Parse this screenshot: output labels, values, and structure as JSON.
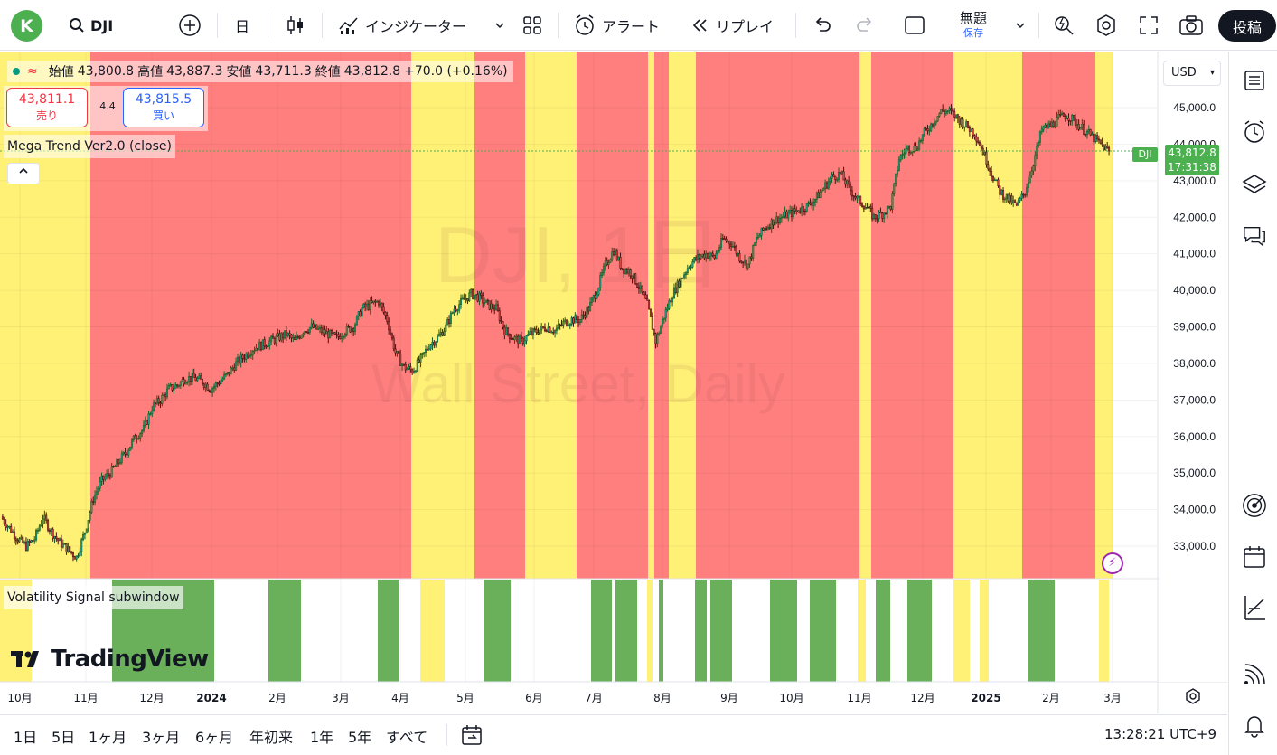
{
  "topbar": {
    "avatar_letter": "K",
    "symbol": "DJI",
    "interval": "日",
    "indicators_label": "インジケーター",
    "alert_label": "アラート",
    "replay_label": "リプレイ",
    "layout_name": "無題",
    "save_label": "保存",
    "post_label": "投稿"
  },
  "legend": {
    "open_label": "始値",
    "open": "43,800.8",
    "high_label": "高値",
    "high": "43,887.3",
    "low_label": "安値",
    "low": "43,711.3",
    "close_label": "終値",
    "close": "43,812.8",
    "change": "+70.0 (+0.16%)",
    "wave": "≈"
  },
  "trade": {
    "sell_price": "43,811.1",
    "sell_label": "売り",
    "spread": "4.4",
    "buy_price": "43,815.5",
    "buy_label": "買い"
  },
  "indicator_name": "Mega Trend Ver2.0 (close)",
  "subwindow_name": "Volatility Signal subwindow",
  "watermark": {
    "line1": "DJI, 1日",
    "line2": "Wall Street, Daily"
  },
  "logo_text": "TradingView",
  "price_axis": {
    "currency": "USD",
    "ticks": [
      "45,000.0",
      "44,000.0",
      "43,000.0",
      "42,000.0",
      "41,000.0",
      "40,000.0",
      "39,000.0",
      "38,000.0",
      "37,000.0",
      "36,000.0",
      "35,000.0",
      "34,000.0",
      "33,000.0"
    ],
    "current_price": "43,812.8",
    "countdown": "17:31:38",
    "symbol_tag": "DJI"
  },
  "time_axis": {
    "labels": [
      "10月",
      "11月",
      "12月",
      "2024",
      "2月",
      "3月",
      "4月",
      "5月",
      "6月",
      "7月",
      "8月",
      "9月",
      "10月",
      "11月",
      "12月",
      "2025",
      "2月",
      "3月"
    ]
  },
  "bottombar": {
    "ranges": [
      "1日",
      "5日",
      "1ヶ月",
      "3ヶ月",
      "6ヶ月",
      "年初来",
      "1年",
      "5年",
      "すべて"
    ],
    "clock": "13:28:21 UTC+9"
  },
  "colors": {
    "bull": "#26a69a",
    "bear": "#ef5350",
    "candle_body_dark": "#1b3a2c",
    "zone_red": "#ff7f7f",
    "zone_yellow": "#fff176",
    "signal_green": "#6aaf5a",
    "accent": "#2962ff",
    "price_tag": "#4caf50"
  },
  "chart_data": {
    "type": "candlestick",
    "y_range": [
      32000,
      46200
    ],
    "series": [
      {
        "values": [
          33800,
          33500,
          33200,
          33000,
          33200,
          33800,
          33400,
          33100,
          32900,
          32700,
          33400,
          34300,
          34800,
          35000,
          35300,
          35600,
          36000,
          36200,
          36800,
          37000,
          37300,
          37400,
          37600,
          37600,
          37500,
          37300,
          37500,
          37700,
          38000,
          38200,
          38400,
          38500,
          38600,
          38700,
          38800,
          38600,
          38900,
          39000,
          38900,
          38800,
          38700,
          38900,
          39000,
          39500,
          39600,
          39700,
          39200,
          38300,
          37900,
          37800,
          38100,
          38500,
          38700,
          39000,
          39500,
          39700,
          39900,
          39800,
          39600,
          39500,
          38900,
          38700,
          38600,
          38800,
          38900,
          39000,
          38900,
          39100,
          39200,
          39200,
          39500,
          40000,
          40700,
          41100,
          40600,
          40500,
          40100,
          39600,
          38600,
          39300,
          39900,
          40300,
          40700,
          40900,
          41000,
          40900,
          41400,
          41300,
          40900,
          40700,
          41400,
          41700,
          41900,
          42000,
          42100,
          42200,
          42300,
          42500,
          42800,
          43100,
          43200,
          42800,
          42500,
          42300,
          42000,
          42100,
          42300,
          43600,
          43900,
          43900,
          44300,
          44600,
          44900,
          44900,
          44700,
          44500,
          44300,
          43800,
          43200,
          42700,
          42500,
          42300,
          42700,
          43500,
          44400,
          44500,
          44700,
          44800,
          44600,
          44400,
          44200,
          44000,
          43800
        ]
      }
    ],
    "zones": [
      {
        "from": 0,
        "to": 100,
        "color": "yellow"
      },
      {
        "from": 100,
        "to": 455,
        "color": "red"
      },
      {
        "from": 455,
        "to": 525,
        "color": "yellow"
      },
      {
        "from": 525,
        "to": 581,
        "color": "red"
      },
      {
        "from": 581,
        "to": 638,
        "color": "yellow"
      },
      {
        "from": 638,
        "to": 717,
        "color": "red"
      },
      {
        "from": 717,
        "to": 724,
        "color": "yellow"
      },
      {
        "from": 724,
        "to": 740,
        "color": "red"
      },
      {
        "from": 740,
        "to": 770,
        "color": "yellow"
      },
      {
        "from": 770,
        "to": 951,
        "color": "red"
      },
      {
        "from": 951,
        "to": 964,
        "color": "yellow"
      },
      {
        "from": 964,
        "to": 1055,
        "color": "red"
      },
      {
        "from": 1055,
        "to": 1131,
        "color": "yellow"
      },
      {
        "from": 1131,
        "to": 1212,
        "color": "red"
      },
      {
        "from": 1212,
        "to": 1232,
        "color": "yellow"
      }
    ],
    "signals": [
      {
        "from": 0,
        "to": 35,
        "color": "yellow"
      },
      {
        "from": 124,
        "to": 237,
        "color": "green"
      },
      {
        "from": 297,
        "to": 333,
        "color": "green"
      },
      {
        "from": 418,
        "to": 442,
        "color": "green"
      },
      {
        "from": 465,
        "to": 492,
        "color": "yellow"
      },
      {
        "from": 535,
        "to": 565,
        "color": "green"
      },
      {
        "from": 654,
        "to": 677,
        "color": "green"
      },
      {
        "from": 681,
        "to": 705,
        "color": "green"
      },
      {
        "from": 716,
        "to": 722,
        "color": "yellow"
      },
      {
        "from": 729,
        "to": 734,
        "color": "green"
      },
      {
        "from": 769,
        "to": 782,
        "color": "green"
      },
      {
        "from": 786,
        "to": 810,
        "color": "green"
      },
      {
        "from": 852,
        "to": 882,
        "color": "green"
      },
      {
        "from": 896,
        "to": 925,
        "color": "green"
      },
      {
        "from": 949,
        "to": 958,
        "color": "yellow"
      },
      {
        "from": 969,
        "to": 985,
        "color": "green"
      },
      {
        "from": 1004,
        "to": 1031,
        "color": "green"
      },
      {
        "from": 1055,
        "to": 1073,
        "color": "yellow"
      },
      {
        "from": 1084,
        "to": 1094,
        "color": "yellow"
      },
      {
        "from": 1137,
        "to": 1167,
        "color": "green"
      },
      {
        "from": 1216,
        "to": 1227,
        "color": "yellow"
      }
    ]
  }
}
